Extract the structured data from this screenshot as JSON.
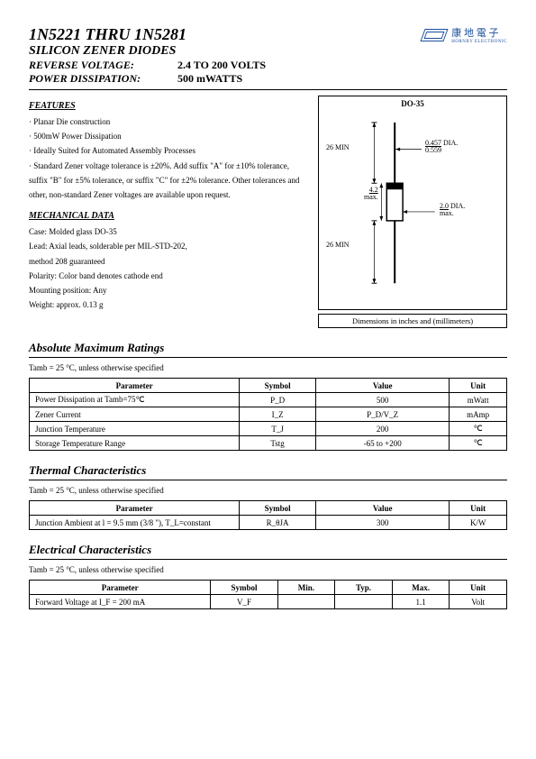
{
  "header": {
    "title": "1N5221 THRU 1N5281",
    "subtitle": "SILICON ZENER DIODES",
    "spec1_label": "REVERSE VOLTAGE:",
    "spec1_value": "2.4 TO 200 VOLTS",
    "spec2_label": "POWER DISSIPATION:",
    "spec2_value": "500 mWATTS",
    "logo_text": "康 地 電 子",
    "logo_sub": "HORNBY ELECTRONIC"
  },
  "features": {
    "heading": "FEATURES",
    "items": [
      "Planar Die construction",
      "500mW Power Dissipation",
      "Ideally Suited for Automated Assembly Processes",
      "Standard Zener voltage tolerance is ±20%. Add suffix \"A\" for ±10% tolerance, suffix \"B\" for ±5% tolerance, or suffix \"C\" for ±2% tolerance. Other tolerances and other, non-standard Zener voltages are available upon request."
    ]
  },
  "mechanical": {
    "heading": "MECHANICAL DATA",
    "lines": [
      "Case: Molded glass DO-35",
      "Lead: Axial leads, solderable per MIL-STD-202,",
      "method 208 guaranteed",
      "Polarity: Color band denotes cathode end",
      "Mounting position: Any",
      "Weight: approx. 0.13 g"
    ]
  },
  "package": {
    "label": "DO-35",
    "caption": "Dimensions in inches and (millimeters)",
    "dim_lead": "26 MIN",
    "dim_dia1_top": "0.457",
    "dim_dia1_bot": "0.559",
    "dim_dia1_suf": "DIA.",
    "dim_body": "4.2",
    "dim_body_sub": "max.",
    "dim_dia2_top": "2.0",
    "dim_dia2_bot": "max.",
    "dim_dia2_suf": "DIA."
  },
  "abs_ratings": {
    "title": "Absolute Maximum Ratings",
    "note": "Tamb = 25 °C, unless otherwise specified",
    "headers": [
      "Parameter",
      "Symbol",
      "Value",
      "Unit"
    ],
    "rows": [
      [
        "Power Dissipation at Tamb=75℃",
        "P_D",
        "500",
        "mWatt"
      ],
      [
        "Zener Current",
        "I_Z",
        "P_D/V_Z",
        "mAmp"
      ],
      [
        "Junction Temperature",
        "T_J",
        "200",
        "℃"
      ],
      [
        "Storage Temperature Range",
        "Tstg",
        "-65 to +200",
        "℃"
      ]
    ],
    "col_widths": [
      "44%",
      "16%",
      "28%",
      "12%"
    ]
  },
  "thermal": {
    "title": "Thermal Characteristics",
    "note": "Tamb = 25 °C, unless otherwise specified",
    "headers": [
      "Parameter",
      "Symbol",
      "Value",
      "Unit"
    ],
    "rows": [
      [
        "Junction Ambient at l = 9.5 mm (3/8 \"), T_L=constant",
        "R_θJA",
        "300",
        "K/W"
      ]
    ],
    "col_widths": [
      "44%",
      "16%",
      "28%",
      "12%"
    ]
  },
  "electrical": {
    "title": "Electrical Characteristics",
    "note": "Tamb = 25 °C, unless otherwise specified",
    "headers": [
      "Parameter",
      "Symbol",
      "Min.",
      "Typ.",
      "Max.",
      "Unit"
    ],
    "rows": [
      [
        "Forward Voltage at I_F = 200 mA",
        "V_F",
        "",
        "",
        "1.1",
        "Volt"
      ]
    ],
    "col_widths": [
      "38%",
      "14%",
      "12%",
      "12%",
      "12%",
      "12%"
    ]
  }
}
